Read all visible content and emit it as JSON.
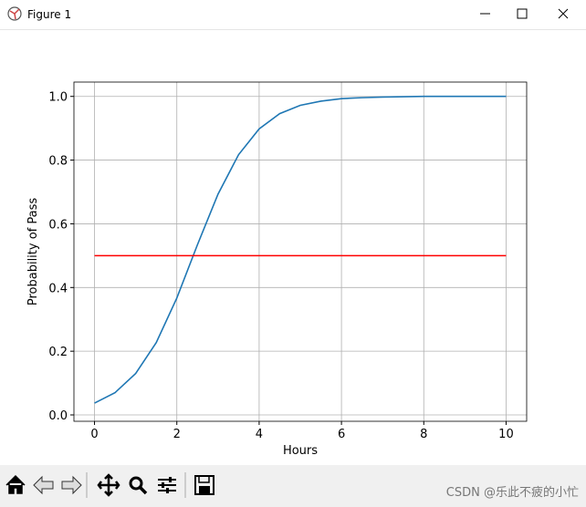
{
  "window": {
    "title": "Figure 1"
  },
  "watermark": "CSDN @乐此不疲的小忙",
  "chart_data": {
    "type": "line",
    "xlabel": "Hours",
    "ylabel": "Probability of Pass",
    "xlim": [
      -0.5,
      10.5
    ],
    "ylim": [
      -0.02,
      1.045
    ],
    "xticks": [
      0,
      2,
      4,
      6,
      8,
      10
    ],
    "yticks": [
      {
        "value": 0,
        "label": "0.0"
      },
      0.2,
      0.4,
      0.6,
      0.8,
      {
        "value": 1,
        "label": "1.0"
      }
    ],
    "grid": true,
    "series": [
      {
        "color": "#1f77b4",
        "x": [
          0,
          0.5,
          1,
          1.5,
          2,
          2.5,
          3,
          3.5,
          4,
          4.5,
          5,
          5.5,
          6,
          6.5,
          7,
          7.5,
          8,
          8.5,
          9,
          9.5,
          10
        ],
        "values": [
          0.037,
          0.07,
          0.13,
          0.227,
          0.367,
          0.534,
          0.693,
          0.817,
          0.898,
          0.946,
          0.972,
          0.985,
          0.993,
          0.996,
          0.998,
          0.999,
          1.0,
          1.0,
          1.0,
          1.0,
          1.0
        ]
      },
      {
        "color": "#ff0000",
        "x": [
          0,
          10
        ],
        "values": [
          0.5,
          0.5
        ]
      }
    ]
  }
}
